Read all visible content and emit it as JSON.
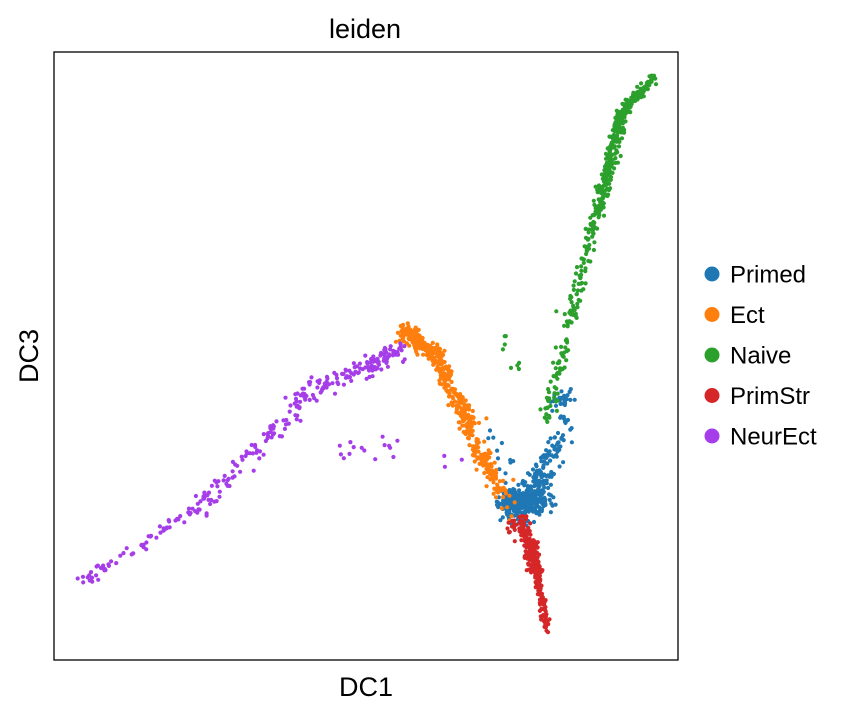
{
  "chart_data": {
    "type": "scatter",
    "title": "leiden",
    "xlabel": "DC1",
    "ylabel": "DC3",
    "xlim": [
      0,
      100
    ],
    "ylim": [
      0,
      100
    ],
    "ticks": false,
    "grid": false,
    "legend_position": "right",
    "series": [
      {
        "name": "Primed",
        "color": "#1f77b4",
        "segments": [
          {
            "from": [
              72.5,
              24
            ],
            "to": [
              79,
              33
            ],
            "n": 40,
            "jitter": 1.5
          },
          {
            "from": [
              75.5,
              24
            ],
            "to": [
              82,
              40
            ],
            "n": 80,
            "jitter": 1.4
          },
          {
            "from": [
              80,
              42
            ],
            "to": [
              83,
              44
            ],
            "n": 25,
            "jitter": 1.2
          },
          {
            "from": [
              72,
              26
            ],
            "to": [
              79,
              26
            ],
            "n": 260,
            "jitter": 1.6
          },
          {
            "from": [
              74,
              22
            ],
            "to": [
              79,
              31
            ],
            "n": 90,
            "jitter": 1.5
          },
          {
            "from": [
              70.5,
              37
            ],
            "to": [
              73,
              30
            ],
            "n": 12,
            "jitter": 1.4
          }
        ]
      },
      {
        "name": "Ect",
        "color": "#ff7f0e",
        "segments": [
          {
            "from": [
              56,
              54.5
            ],
            "to": [
              62,
              49.5
            ],
            "n": 160,
            "jitter": 1.1
          },
          {
            "from": [
              61,
              50
            ],
            "to": [
              67,
              38
            ],
            "n": 170,
            "jitter": 1.1
          },
          {
            "from": [
              66,
              38
            ],
            "to": [
              72,
              27
            ],
            "n": 120,
            "jitter": 1.0
          },
          {
            "from": [
              55,
              53
            ],
            "to": [
              60,
              51
            ],
            "n": 25,
            "jitter": 1.2
          },
          {
            "from": [
              68,
              41
            ],
            "to": [
              74,
              21
            ],
            "n": 12,
            "jitter": 1.3
          }
        ]
      },
      {
        "name": "Naive",
        "color": "#2ca02c",
        "segments": [
          {
            "from": [
              79,
              40
            ],
            "to": [
              87,
              75
            ],
            "n": 150,
            "jitter": 0.9
          },
          {
            "from": [
              87,
              73
            ],
            "to": [
              91,
              90
            ],
            "n": 220,
            "jitter": 0.8
          },
          {
            "from": [
              91,
              90
            ],
            "to": [
              96,
              96
            ],
            "n": 110,
            "jitter": 0.7
          },
          {
            "from": [
              72,
              53
            ],
            "to": [
              74,
              48
            ],
            "n": 8,
            "jitter": 1.5
          },
          {
            "from": [
              81,
              58
            ],
            "to": [
              83,
              58
            ],
            "n": 4,
            "jitter": 1.2
          }
        ]
      },
      {
        "name": "PrimStr",
        "color": "#d62728",
        "segments": [
          {
            "from": [
              75,
              23
            ],
            "to": [
              77.5,
              14
            ],
            "n": 200,
            "jitter": 0.9
          },
          {
            "from": [
              77.5,
              14
            ],
            "to": [
              79,
              5
            ],
            "n": 80,
            "jitter": 0.5
          },
          {
            "from": [
              73.5,
              22
            ],
            "to": [
              75,
              20
            ],
            "n": 15,
            "jitter": 1.0
          }
        ]
      },
      {
        "name": "NeurEct",
        "color": "#a53de9",
        "segments": [
          {
            "from": [
              4,
              12.5
            ],
            "to": [
              22,
              24
            ],
            "n": 55,
            "jitter": 0.9
          },
          {
            "from": [
              22,
              24
            ],
            "to": [
              40,
              42
            ],
            "n": 95,
            "jitter": 1.3
          },
          {
            "from": [
              38,
              43
            ],
            "to": [
              55,
              50
            ],
            "n": 95,
            "jitter": 1.4
          },
          {
            "from": [
              50,
              48
            ],
            "to": [
              56,
              52
            ],
            "n": 45,
            "jitter": 1.0
          },
          {
            "from": [
              45,
              35
            ],
            "to": [
              64,
              33
            ],
            "n": 18,
            "jitter": 2.2
          }
        ]
      }
    ]
  }
}
